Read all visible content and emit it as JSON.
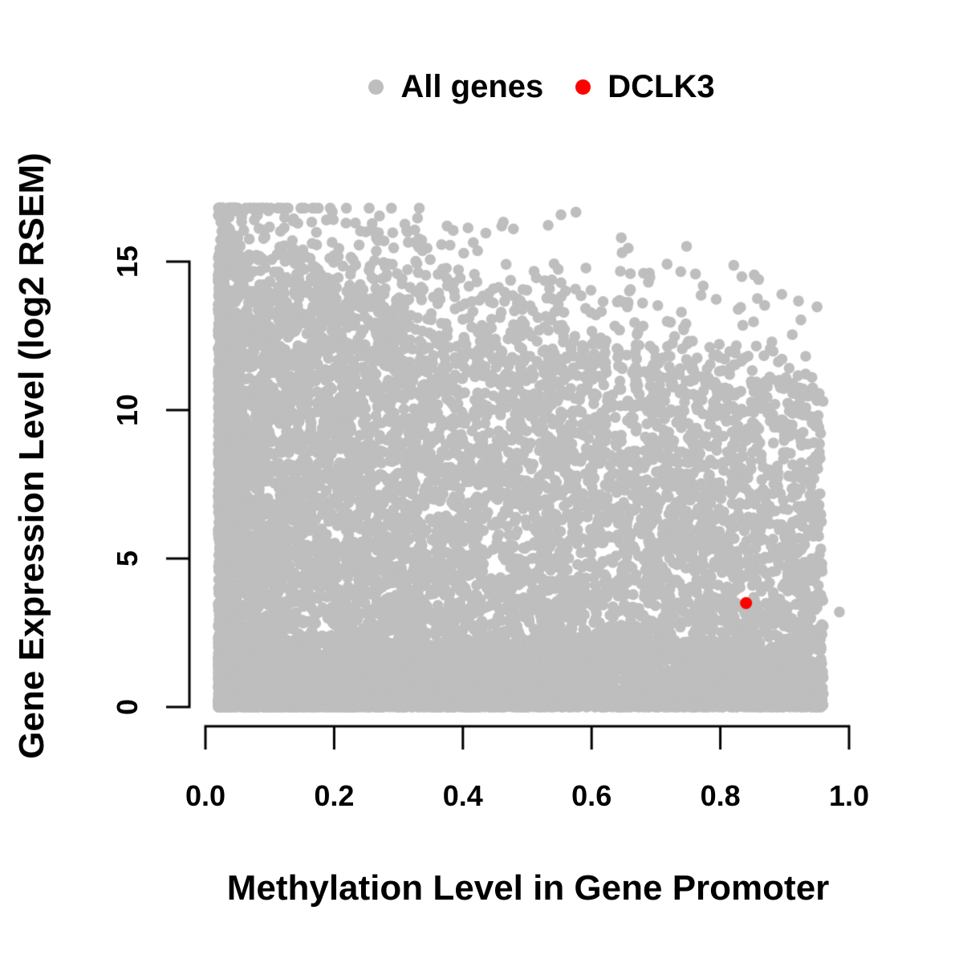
{
  "figure": {
    "background": "#FFFFFF"
  },
  "chart_data": {
    "type": "scatter",
    "title": "",
    "xlabel": "Methylation Level in Gene Promoter",
    "ylabel": "Gene Expression Level (log2 RSEM)",
    "xlim": [
      0,
      1
    ],
    "ylim": [
      0,
      15
    ],
    "grid": false,
    "legend_position": "top-center",
    "axis_color": "#000000",
    "x_ticks": {
      "values": [
        0,
        0.2,
        0.4,
        0.6,
        0.8,
        1.0
      ],
      "labels": [
        "0.0",
        "0.2",
        "0.4",
        "0.6",
        "0.8",
        "1.0"
      ]
    },
    "y_ticks": {
      "values": [
        0,
        5,
        10,
        15
      ],
      "labels": [
        "0",
        "5",
        "10",
        "15"
      ]
    },
    "series": [
      {
        "name": "All genes",
        "color": "#BEBEBE",
        "marker": "filled-circle",
        "point_radius_px": 6.8,
        "n_points": 12000,
        "distribution": {
          "description": "Dense cloud of ~12k genes: methylation between 0.02 and 0.96 skewed toward low values; expression fills 0 up to a ceiling declining from ~15.3 at methylation 0 to ~10.5 at methylation 1; a dense zero-expression band spans the full methylation range; sparse strays reach ~16.8",
          "seed": 42,
          "x_min": 0.02,
          "x_max": 0.96,
          "x_skew_exponent": 1.6,
          "ceiling_intercept": 15.3,
          "ceiling_slope": -4.8,
          "ceiling_noise_sd": 0.9,
          "bottom_band_fraction": 0.3,
          "bottom_band_max": 2.2,
          "bottom_band_exponent": 2.5,
          "fill_exponent": 1.25,
          "outlier_fraction": 0.025,
          "outlier_extra_max": 3,
          "y_max": 16.8
        },
        "notable_points": [
          [
            0.031,
            16.2
          ],
          [
            0.037,
            16.5
          ],
          [
            0.045,
            16.8
          ],
          [
            0.076,
            16.4
          ],
          [
            0.233,
            16.3
          ],
          [
            0.249,
            16.0
          ],
          [
            0.385,
            16.05
          ],
          [
            0.985,
            3.2
          ]
        ]
      },
      {
        "name": "DCLK3",
        "color": "#FF0000",
        "marker": "filled-circle",
        "point_radius_px": 7.5,
        "points": [
          [
            0.84,
            3.5
          ]
        ]
      }
    ]
  }
}
